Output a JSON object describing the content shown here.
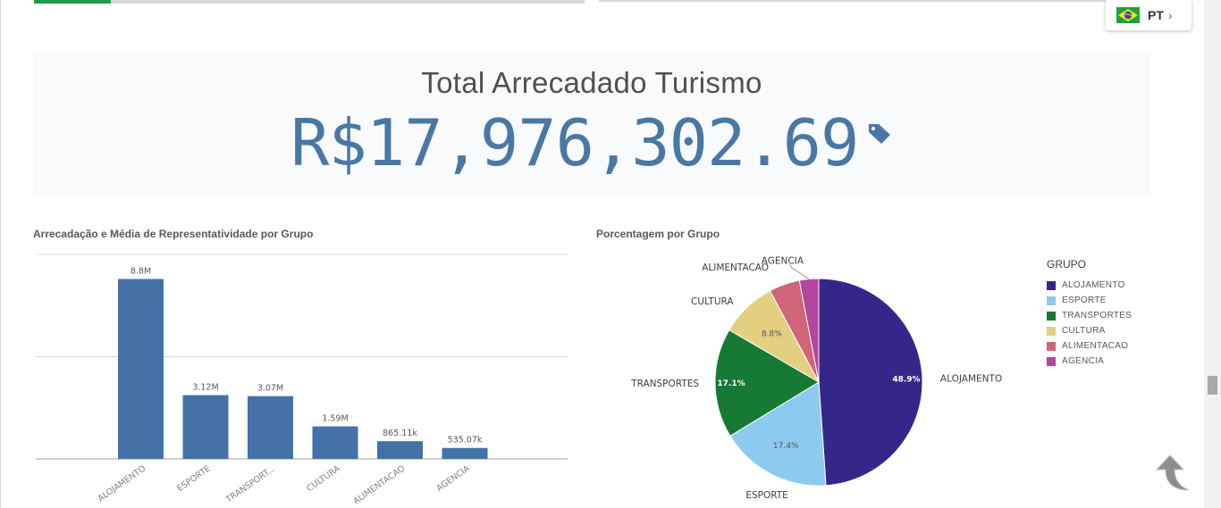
{
  "language": {
    "code": "PT",
    "flag_icon": "brazil-flag-icon",
    "chevron_icon": "chevron-right-icon"
  },
  "progress": {
    "top_left_fill_fraction": 0.14
  },
  "kpi": {
    "title": "Total Arrecadado Turismo",
    "value": "R$17,976,302.69",
    "icon": "tag-icon",
    "value_color": "#4a78a4"
  },
  "bar_chart_title": "Arrecadação e Média de Representatividade por Grupo",
  "pie_chart_title": "Porcentagem por Grupo",
  "legend_title": "GRUPO",
  "chart_data": [
    {
      "type": "bar",
      "title": "Arrecadação e Média de Representatividade por Grupo",
      "categories": [
        "ALOJAMENTO",
        "ESPORTE",
        "TRANSPORT...",
        "CULTURA",
        "ALIMENTACAO",
        "AGENCIA"
      ],
      "values": [
        8800000,
        3120000,
        3070000,
        1590000,
        865110,
        535070
      ],
      "data_labels": [
        "8.8M",
        "3.12M",
        "3.07M",
        "1.59M",
        "865.11k",
        "535.07k"
      ],
      "ylim": [
        0,
        10000000
      ],
      "grid": true,
      "color": "#4472a8"
    },
    {
      "type": "pie",
      "title": "Porcentagem por Grupo",
      "categories": [
        "ALOJAMENTO",
        "ESPORTE",
        "TRANSPORTES",
        "CULTURA",
        "ALIMENTACAO",
        "AGENCIA"
      ],
      "values": [
        48.9,
        17.4,
        17.1,
        8.8,
        4.8,
        3.0
      ],
      "slice_labels": [
        "48.9%",
        "17.4%",
        "17.1%",
        "8.8%",
        "",
        ""
      ],
      "colors": [
        "#352689",
        "#8dcaef",
        "#167a35",
        "#e3cf80",
        "#d06478",
        "#b2479e"
      ],
      "legend": "right"
    }
  ],
  "back_to_top_icon": "back-to-top-arrow-icon"
}
